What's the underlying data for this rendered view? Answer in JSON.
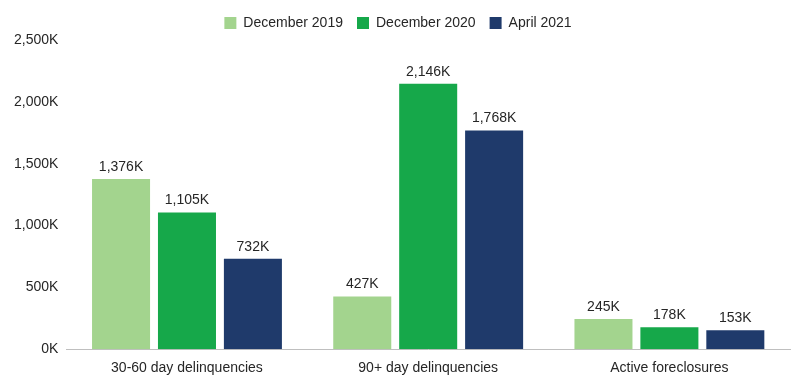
{
  "chart_data": {
    "type": "bar",
    "categories": [
      "30-60 day delinquencies",
      "90+ day delinquencies",
      "Active foreclosures"
    ],
    "series": [
      {
        "name": "December 2019",
        "color": "#a3d48e",
        "values": [
          1376000,
          427000,
          245000
        ],
        "value_labels": [
          "1,376K",
          "427K",
          "245K"
        ]
      },
      {
        "name": "December 2020",
        "color": "#16a84a",
        "values": [
          1105000,
          2146000,
          178000
        ],
        "value_labels": [
          "1,105K",
          "2,146K",
          "178K"
        ]
      },
      {
        "name": "April 2021",
        "color": "#1f3a6b",
        "values": [
          732000,
          1768000,
          153000
        ],
        "value_labels": [
          "732K",
          "1,768K",
          "153K"
        ]
      }
    ],
    "ylim": [
      0,
      2500000
    ],
    "yticks": [
      {
        "value": 0,
        "label": "0K"
      },
      {
        "value": 500000,
        "label": "500K"
      },
      {
        "value": 1000000,
        "label": "1,000K"
      },
      {
        "value": 1500000,
        "label": "1,500K"
      },
      {
        "value": 2000000,
        "label": "2,000K"
      },
      {
        "value": 2500000,
        "label": "2,500K"
      }
    ],
    "grid": false,
    "legend": "top",
    "data_labels": true
  }
}
